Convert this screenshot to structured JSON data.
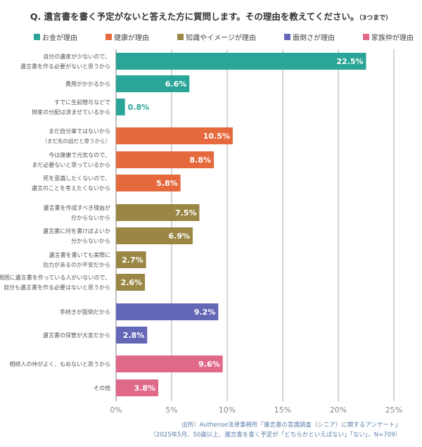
{
  "chart_data": {
    "type": "bar",
    "orientation": "horizontal",
    "title": "Q. 遺言書を書く予定がないと答えた方に質問します。その理由を教えてください。",
    "title_note": "（3つまで）",
    "xlim": [
      0,
      25
    ],
    "xticks": [
      "0%",
      "5%",
      "10%",
      "15%",
      "20%",
      "25%"
    ],
    "xtick_values": [
      0,
      5,
      10,
      15,
      20,
      25
    ],
    "grid": true,
    "legend_position": "top",
    "groups": [
      {
        "name": "お金が理由",
        "color": "#2aa597"
      },
      {
        "name": "健康が理由",
        "color": "#e5693d"
      },
      {
        "name": "知識やイメージが理由",
        "color": "#9b8745"
      },
      {
        "name": "面倒さが理由",
        "color": "#6466b6"
      },
      {
        "name": "家族仲が理由",
        "color": "#e0698a"
      }
    ],
    "bars": [
      {
        "label": [
          "自分の遺産が少ないので、",
          "遺言書を作る必要がないと思うから"
        ],
        "value": 22.5,
        "text": "22.5%",
        "group": 0
      },
      {
        "label": [
          "費用がかかるから"
        ],
        "value": 6.6,
        "text": "6.6%",
        "group": 0
      },
      {
        "label": [
          "すでに生前贈与などで",
          "財産の分配は済ませているから"
        ],
        "value": 0.8,
        "text": "0.8%",
        "group": 0
      },
      {
        "label": [
          "まだ自分事ではないから",
          "（まだ先の話だと思うから）"
        ],
        "value": 10.5,
        "text": "10.5%",
        "group": 1
      },
      {
        "label": [
          "今は健康で元気なので、",
          "まだ必要ないと思っているから"
        ],
        "value": 8.8,
        "text": "8.8%",
        "group": 1
      },
      {
        "label": [
          "死を意識したくないので、",
          "遺言のことを考えたくないから"
        ],
        "value": 5.8,
        "text": "5.8%",
        "group": 1
      },
      {
        "label": [
          "遺言書を作成すべき理由が",
          "分からないから"
        ],
        "value": 7.5,
        "text": "7.5%",
        "group": 2
      },
      {
        "label": [
          "遺言書に何を書けばよいか",
          "分からないから"
        ],
        "value": 6.9,
        "text": "6.9%",
        "group": 2
      },
      {
        "label": [
          "遺言書を書いても実際に",
          "効力があるのか不安だから"
        ],
        "value": 2.7,
        "text": "2.7%",
        "group": 2
      },
      {
        "label": [
          "周囲に遺言書を作っている人がいないので、",
          "自分も遺言書を作る必要はないと思うから"
        ],
        "value": 2.6,
        "text": "2.6%",
        "group": 2
      },
      {
        "label": [
          "手続きが面倒だから"
        ],
        "value": 9.2,
        "text": "9.2%",
        "group": 3
      },
      {
        "label": [
          "遺言書の保管が大変だから"
        ],
        "value": 2.8,
        "text": "2.8%",
        "group": 3
      },
      {
        "label": [
          "相続人の仲がよく、もめないと思うから"
        ],
        "value": 9.6,
        "text": "9.6%",
        "group": 4
      },
      {
        "label": [
          "その他"
        ],
        "value": 3.8,
        "text": "3.8%",
        "group": 4
      }
    ]
  },
  "source": [
    "出所）Authense法律事務所「遺言書の意識調査（シニア）に関するアンケート」",
    "（2025年5月、50歳以上、遺言書を書く予定が「どちらかといえばない」「ない」、N=709）"
  ]
}
